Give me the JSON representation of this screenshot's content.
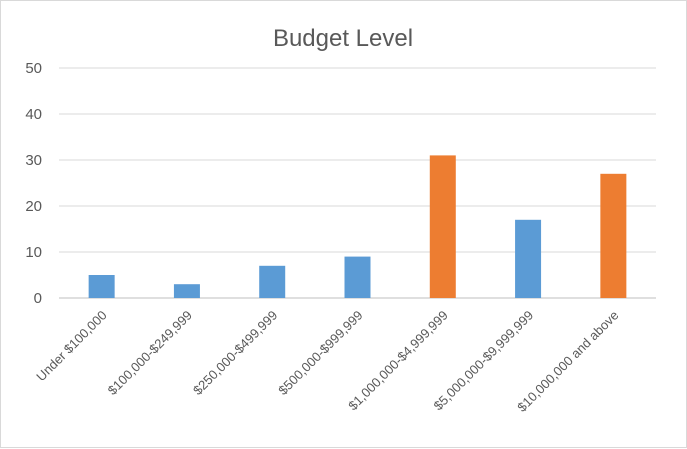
{
  "chart_data": {
    "type": "bar",
    "title": "Budget Level",
    "xlabel": "",
    "ylabel": "",
    "ylim": [
      0,
      50
    ],
    "yticks": [
      0,
      10,
      20,
      30,
      40,
      50
    ],
    "grid": true,
    "legend": "none",
    "categories": [
      "Under $100,000",
      "$100,000-$249,999",
      "$250,000-$499,999",
      "$500,000-$999,999",
      "$1,000,000-$4,999,999",
      "$5,000,000-$9,999,999",
      "$10,000,000 and above"
    ],
    "values": [
      5,
      3,
      7,
      9,
      31,
      17,
      27
    ],
    "bar_colors": [
      "#5b9bd5",
      "#5b9bd5",
      "#5b9bd5",
      "#5b9bd5",
      "#ed7d31",
      "#5b9bd5",
      "#ed7d31"
    ]
  }
}
